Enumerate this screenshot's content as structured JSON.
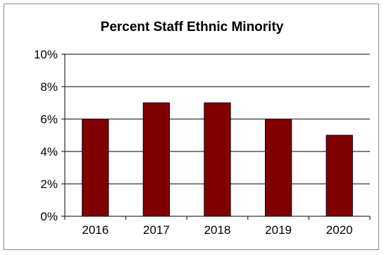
{
  "chart_data": {
    "type": "bar",
    "title": "Percent Staff Ethnic Minority",
    "xlabel": "",
    "ylabel": "",
    "categories": [
      "2016",
      "2017",
      "2018",
      "2019",
      "2020"
    ],
    "values": [
      6,
      7,
      7,
      6,
      5
    ],
    "ylim": [
      0,
      10
    ],
    "y_ticks": [
      0,
      2,
      4,
      6,
      8,
      10
    ],
    "y_tick_labels": [
      "0%",
      "2%",
      "4%",
      "6%",
      "8%",
      "10%"
    ],
    "grid": true,
    "legend": "none",
    "bar_color": "#800000",
    "bar_edge_color": "#000000"
  }
}
